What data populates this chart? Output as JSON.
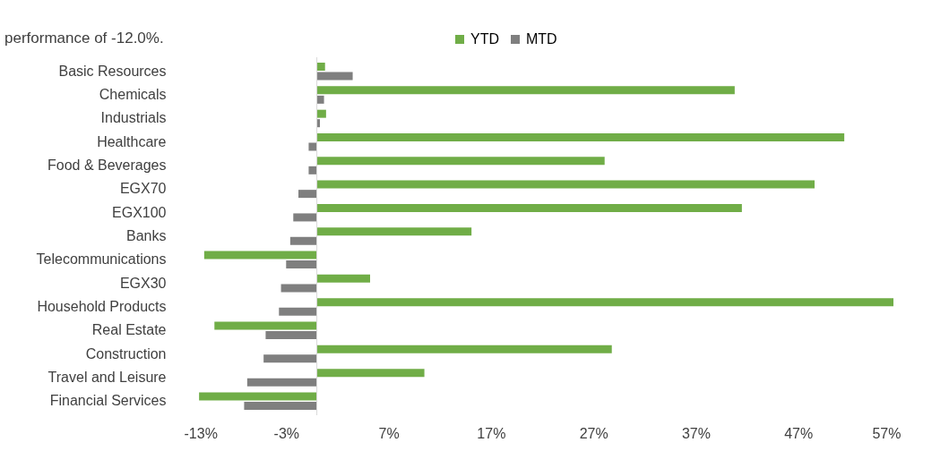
{
  "chart_data": {
    "type": "bar",
    "orientation": "horizontal",
    "categories": [
      "Basic Resources",
      "Chemicals",
      "Industrials",
      "Healthcare",
      "Food & Beverages",
      "EGX70",
      "EGX100",
      "Banks",
      "Telecommunications",
      "EGX30",
      "Household Products",
      "Real Estate",
      "Construction",
      "Travel and Leisure",
      "Financial Services"
    ],
    "series": [
      {
        "name": "YTD",
        "color": "#70ad47",
        "values": [
          0.8,
          40.8,
          0.9,
          51.5,
          28.1,
          48.6,
          41.5,
          15.1,
          -11.0,
          5.2,
          56.3,
          -10.0,
          28.8,
          10.5,
          -11.5
        ]
      },
      {
        "name": "MTD",
        "color": "#7f7f7f",
        "values": [
          3.5,
          0.7,
          0.3,
          -0.8,
          -0.8,
          -1.8,
          -2.3,
          -2.6,
          -3.0,
          -3.5,
          -3.7,
          -5.0,
          -5.2,
          -6.8,
          -7.1
        ]
      }
    ],
    "xlim": [
      -13,
      57
    ],
    "xticks": [
      {
        "value": -13,
        "label": "-13%"
      },
      {
        "value": -3,
        "label": "-3%"
      },
      {
        "value": 7,
        "label": "7%"
      },
      {
        "value": 17,
        "label": "17%"
      },
      {
        "value": 27,
        "label": "27%"
      },
      {
        "value": 37,
        "label": "37%"
      },
      {
        "value": 47,
        "label": "47%"
      },
      {
        "value": 57,
        "label": "57%"
      }
    ],
    "grid": false,
    "legend": "top",
    "annotations": [
      "performance of -12.0%."
    ]
  }
}
